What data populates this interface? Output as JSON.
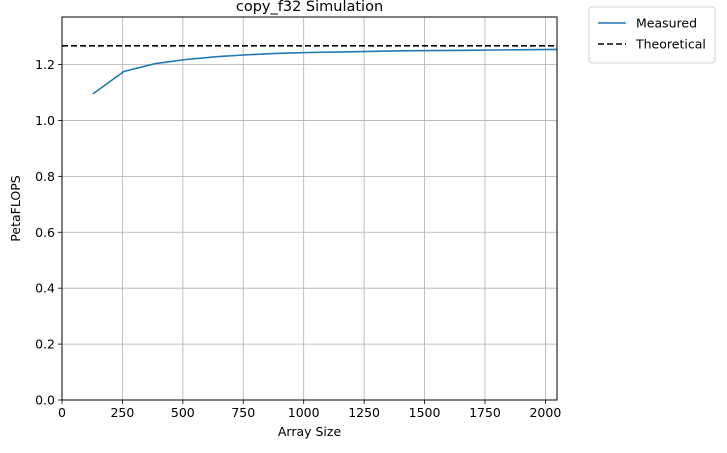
{
  "chart_data": {
    "type": "line",
    "title": "copy_f32 Simulation",
    "xlabel": "Array Size",
    "ylabel": "PetaFLOPS",
    "xlim": [
      0,
      2048
    ],
    "ylim": [
      0,
      1.37
    ],
    "xticks": [
      0,
      250,
      500,
      750,
      1000,
      1250,
      1500,
      1750,
      2000
    ],
    "yticks": [
      0.0,
      0.2,
      0.4,
      0.6,
      0.8,
      1.0,
      1.2
    ],
    "xtick_labels": [
      "0",
      "250",
      "500",
      "750",
      "1000",
      "1250",
      "1500",
      "1750",
      "2000"
    ],
    "ytick_labels": [
      "0.0",
      "0.2",
      "0.4",
      "0.6",
      "0.8",
      "1.0",
      "1.2"
    ],
    "grid": true,
    "legend_placement": "outside top-right",
    "series": [
      {
        "name": "Measured",
        "style": "solid",
        "color": "#1f77b4",
        "x": [
          128,
          256,
          384,
          512,
          640,
          768,
          896,
          1024,
          1152,
          1280,
          1408,
          1536,
          1664,
          1792,
          1920,
          2048
        ],
        "y": [
          1.095,
          1.175,
          1.203,
          1.218,
          1.228,
          1.235,
          1.24,
          1.243,
          1.245,
          1.247,
          1.249,
          1.25,
          1.251,
          1.252,
          1.253,
          1.254
        ]
      },
      {
        "name": "Theoretical",
        "style": "dashed",
        "color": "#000000",
        "x": [
          0,
          2048
        ],
        "y": [
          1.267,
          1.267
        ]
      }
    ]
  }
}
